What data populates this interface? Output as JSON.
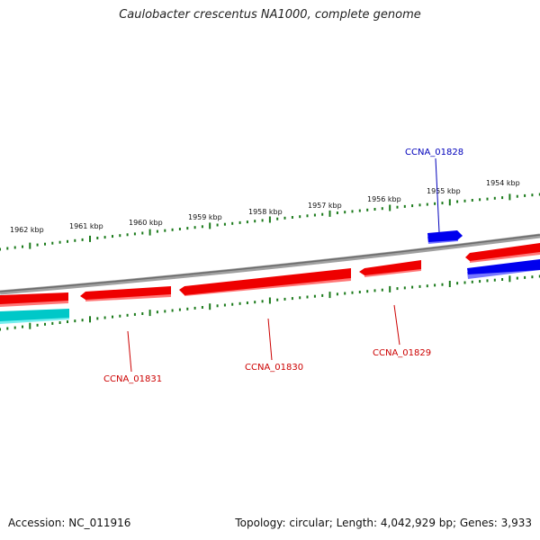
{
  "title": "Caulobacter crescentus NA1000, complete genome",
  "footer": {
    "accession": "Accession: NC_011916",
    "summary": "Topology: circular; Length: 4,042,929 bp; Genes: 3,933"
  },
  "colors": {
    "backbone": "#8a8a8a",
    "ticks": "#1a7a1a",
    "gene_red": "#ee0000",
    "gene_red_shadow": "#ff7777",
    "gene_blue": "#0000ee",
    "gene_blue_shadow": "#7777ff",
    "gene_cyan": "#00c8c8",
    "gene_cyan_shadow": "#77eeee",
    "label_red": "#cc0000",
    "label_blue": "#0000bb"
  },
  "scale_labels": [
    "1962 kbp",
    "1961 kbp",
    "1960 kbp",
    "1959 kbp",
    "1958 kbp",
    "1957 kbp",
    "1956 kbp",
    "1955 kbp",
    "1954 kbp"
  ],
  "gene_labels": [
    "CCNA_01828",
    "CCNA_01829",
    "CCNA_01830",
    "CCNA_01831"
  ]
}
